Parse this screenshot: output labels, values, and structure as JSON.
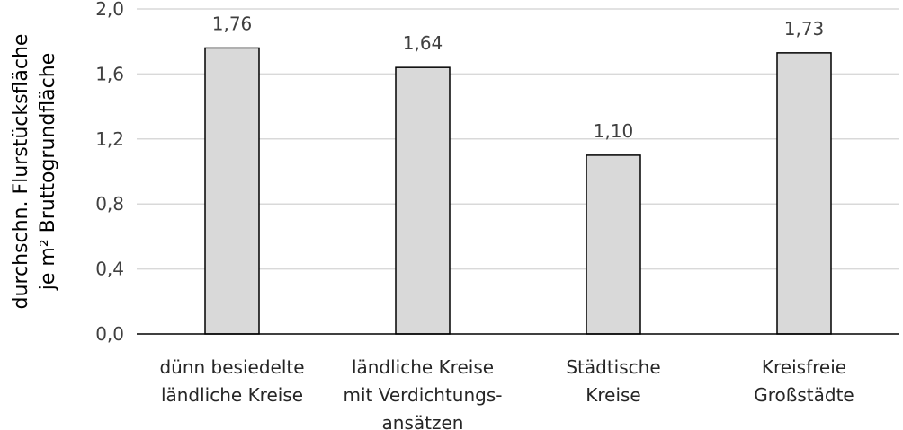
{
  "chart_data": {
    "type": "bar",
    "categories": [
      [
        "dünn besiedelte",
        "ländliche Kreise"
      ],
      [
        "ländliche Kreise",
        "mit Verdichtungs-",
        "ansätzen"
      ],
      [
        "Städtische",
        "Kreise"
      ],
      [
        "Kreisfreie",
        "Großstädte"
      ]
    ],
    "values": [
      1.76,
      1.64,
      1.1,
      1.73
    ],
    "value_labels": [
      "1,76",
      "1,64",
      "1,10",
      "1,73"
    ],
    "ylabel": [
      "durchschn. Flurstücksfläche",
      "je m² Bruttogrundfläche"
    ],
    "ylim": [
      0,
      2.0
    ],
    "yticks": [
      0,
      0.4,
      0.8,
      1.2,
      1.6,
      2.0
    ],
    "ytick_labels": [
      "0,0",
      "0,4",
      "0,8",
      "1,2",
      "1,6",
      "2,0"
    ],
    "grid": true,
    "bar_color": "#d9d9d9",
    "bar_edge_color": "#000000",
    "grid_color": "#d9d9d9"
  }
}
